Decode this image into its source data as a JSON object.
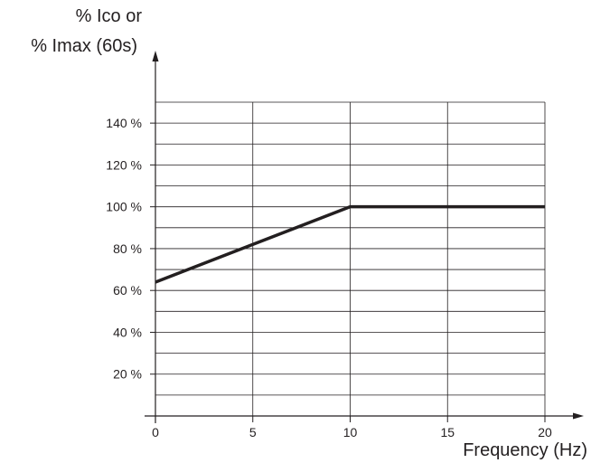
{
  "chart_data": {
    "type": "line",
    "ylabel_lines": [
      "% Ico or",
      "% Imax (60s)"
    ],
    "xlabel": "Frequency (Hz)",
    "xlim": [
      0,
      20
    ],
    "ylim": [
      0,
      150
    ],
    "x_ticks": [
      0,
      5,
      10,
      15,
      20
    ],
    "x_tick_labels": [
      "0",
      "5",
      "10",
      "15",
      "20"
    ],
    "y_ticks": [
      20,
      40,
      60,
      80,
      100,
      120,
      140
    ],
    "y_tick_labels": [
      "20 %",
      "40 %",
      "60 %",
      "80 %",
      "100 %",
      "120 %",
      "140 %"
    ],
    "grid": true,
    "grid_minor_y_step": 10,
    "series": [
      {
        "x": [
          0,
          10,
          20
        ],
        "y": [
          64,
          100,
          100
        ],
        "color": "#231f20"
      }
    ]
  }
}
